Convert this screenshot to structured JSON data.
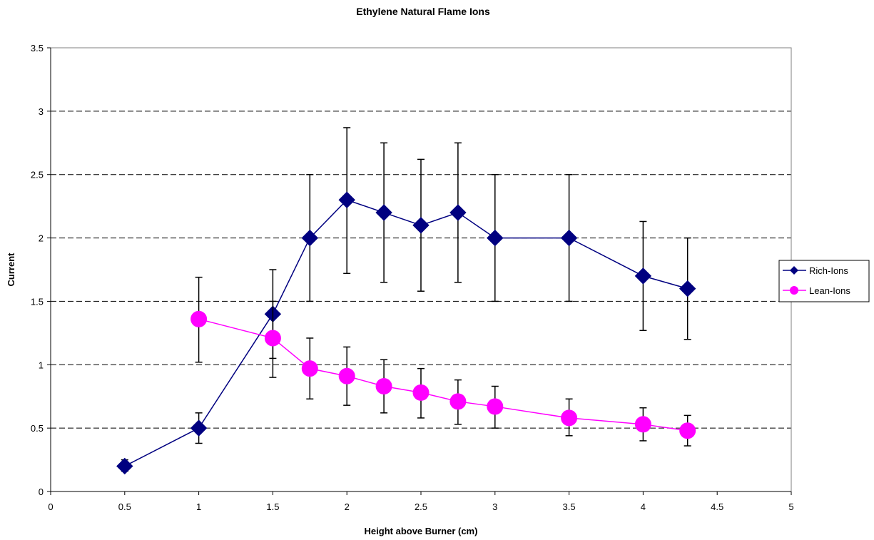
{
  "chart_data": {
    "type": "line",
    "title": "Ethylene Natural Flame Ions",
    "xlabel": "Height above Burner (cm)",
    "ylabel": "Current",
    "xlim": [
      0,
      5
    ],
    "ylim": [
      0,
      3.5
    ],
    "x_ticks": [
      "0",
      "0.5",
      "1",
      "1.5",
      "2",
      "2.5",
      "3",
      "3.5",
      "4",
      "4.5",
      "5"
    ],
    "y_ticks": [
      "0",
      "0.5",
      "1",
      "1.5",
      "2",
      "2.5",
      "3",
      "3.5"
    ],
    "grid": "horizontal dashed",
    "legend_position": "right",
    "series": [
      {
        "name": "Rich-Ions",
        "color": "#000080",
        "marker": "diamond",
        "points": [
          {
            "x": 0.5,
            "y": 0.2,
            "err_low": 0.16,
            "err_high": 0.25
          },
          {
            "x": 1.0,
            "y": 0.5,
            "err_low": 0.38,
            "err_high": 0.62
          },
          {
            "x": 1.5,
            "y": 1.4,
            "err_low": 0.9,
            "err_high": 1.75
          },
          {
            "x": 1.75,
            "y": 2.0,
            "err_low": 1.5,
            "err_high": 2.5
          },
          {
            "x": 2.0,
            "y": 2.3,
            "err_low": 1.72,
            "err_high": 2.87
          },
          {
            "x": 2.25,
            "y": 2.2,
            "err_low": 1.65,
            "err_high": 2.75
          },
          {
            "x": 2.5,
            "y": 2.1,
            "err_low": 1.58,
            "err_high": 2.62
          },
          {
            "x": 2.75,
            "y": 2.2,
            "err_low": 1.65,
            "err_high": 2.75
          },
          {
            "x": 3.0,
            "y": 2.0,
            "err_low": 1.5,
            "err_high": 2.5
          },
          {
            "x": 3.5,
            "y": 2.0,
            "err_low": 1.5,
            "err_high": 2.5
          },
          {
            "x": 4.0,
            "y": 1.7,
            "err_low": 1.27,
            "err_high": 2.13
          },
          {
            "x": 4.3,
            "y": 1.6,
            "err_low": 1.2,
            "err_high": 2.0
          }
        ]
      },
      {
        "name": "Lean-Ions",
        "color": "#ff00ff",
        "marker": "circle",
        "points": [
          {
            "x": 1.0,
            "y": 1.36,
            "err_low": 1.02,
            "err_high": 1.69
          },
          {
            "x": 1.5,
            "y": 1.21,
            "err_low": 1.05,
            "err_high": 1.5
          },
          {
            "x": 1.75,
            "y": 0.97,
            "err_low": 0.73,
            "err_high": 1.21
          },
          {
            "x": 2.0,
            "y": 0.91,
            "err_low": 0.68,
            "err_high": 1.14
          },
          {
            "x": 2.25,
            "y": 0.83,
            "err_low": 0.62,
            "err_high": 1.04
          },
          {
            "x": 2.5,
            "y": 0.78,
            "err_low": 0.58,
            "err_high": 0.97
          },
          {
            "x": 2.75,
            "y": 0.71,
            "err_low": 0.53,
            "err_high": 0.88
          },
          {
            "x": 3.0,
            "y": 0.67,
            "err_low": 0.5,
            "err_high": 0.83
          },
          {
            "x": 3.5,
            "y": 0.58,
            "err_low": 0.44,
            "err_high": 0.73
          },
          {
            "x": 4.0,
            "y": 0.53,
            "err_low": 0.4,
            "err_high": 0.66
          },
          {
            "x": 4.3,
            "y": 0.48,
            "err_low": 0.36,
            "err_high": 0.6
          }
        ]
      }
    ]
  }
}
